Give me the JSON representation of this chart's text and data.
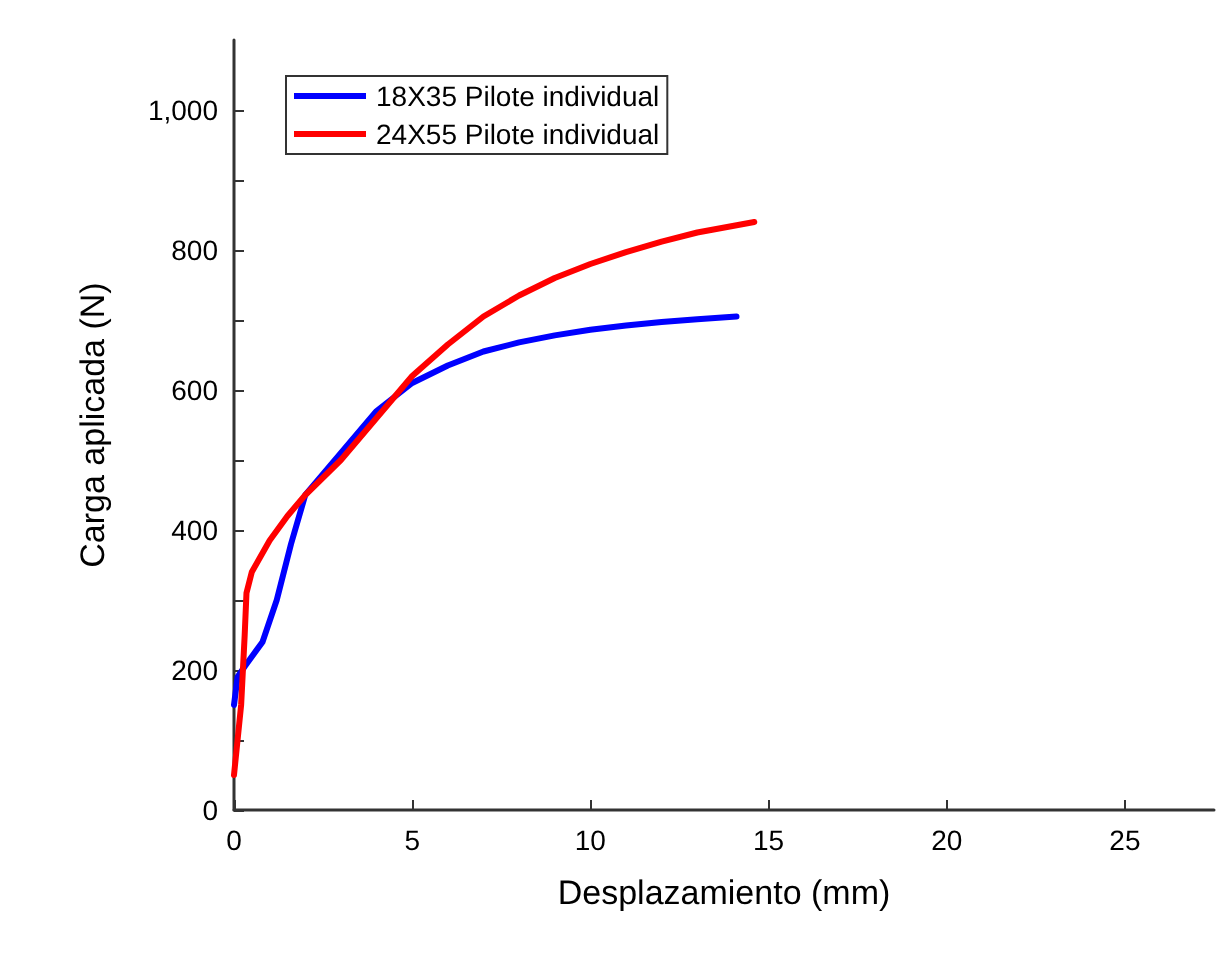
{
  "chart_data": {
    "type": "line",
    "xlabel": "Desplazamiento (mm)",
    "ylabel": "Carga aplicada (N)",
    "xlim": [
      0,
      27.5
    ],
    "xticks": [
      0,
      5,
      10,
      15,
      20,
      25
    ],
    "ylim": [
      0,
      1100
    ],
    "yticks": [
      0,
      {
        "value": 100,
        "label": null
      },
      200,
      {
        "value": 300,
        "label": null
      },
      400,
      {
        "value": 500,
        "label": null
      },
      600,
      {
        "value": 700,
        "label": null
      },
      800,
      {
        "value": 900,
        "label": null
      },
      {
        "value": 1000,
        "label": "1,000"
      }
    ],
    "grid": false,
    "legend": "top left",
    "marker": "none",
    "line_style": "solid",
    "series": [
      {
        "name": "18X35 Pilote individual",
        "color": "#0000ff",
        "x": [
          0,
          0.1,
          0.3,
          0.8,
          1.2,
          1.6,
          2.0,
          2.5,
          3,
          4,
          5,
          6,
          7,
          8,
          9,
          10,
          11,
          12,
          13,
          14.1
        ],
        "values": [
          150,
          190,
          205,
          240,
          300,
          380,
          450,
          480,
          510,
          570,
          610,
          635,
          655,
          668,
          678,
          686,
          692,
          697,
          701,
          705
        ]
      },
      {
        "name": "24X55 Pilote individual",
        "color": "#ff0000",
        "x": [
          0,
          0.1,
          0.2,
          0.3,
          0.35,
          0.5,
          1,
          1.5,
          2,
          3,
          4,
          5,
          6,
          7,
          8,
          9,
          10,
          11,
          12,
          13,
          14.6
        ],
        "values": [
          50,
          100,
          150,
          250,
          310,
          340,
          385,
          420,
          450,
          500,
          560,
          620,
          665,
          705,
          735,
          760,
          780,
          797,
          812,
          825,
          840
        ]
      }
    ]
  }
}
